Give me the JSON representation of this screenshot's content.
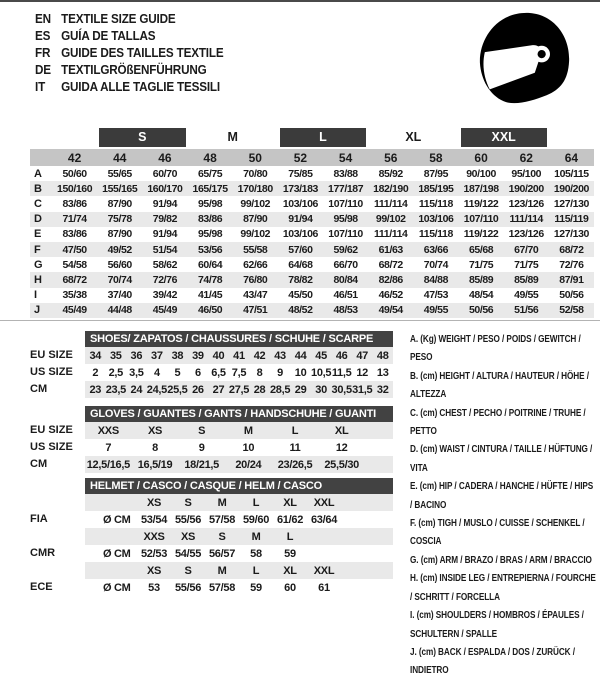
{
  "header": {
    "languages": [
      {
        "code": "EN",
        "text": "TEXTILE SIZE GUIDE"
      },
      {
        "code": "ES",
        "text": "GUÍA DE TALLAS"
      },
      {
        "code": "FR",
        "text": "GUIDE DES TAILLES TEXTILE"
      },
      {
        "code": "DE",
        "text": "TEXTILGRÖßENFÜHRUNG"
      },
      {
        "code": "IT",
        "text": "GUIDA ALLE TAGLIE TESSILI"
      }
    ],
    "helmet_icon": "racing-helmet-icon"
  },
  "colors": {
    "dark_bar": "#3b3b3b",
    "sub_bar": "#424242",
    "numeric_band": "#c5c5c5",
    "row_stripe": "#e9e9e9",
    "top_border": "#4a4a4a"
  },
  "main_table": {
    "size_groups": [
      {
        "label": "",
        "span": 2,
        "dark": false
      },
      {
        "label": "S",
        "span": 2,
        "dark": true
      },
      {
        "label": "M",
        "span": 2,
        "dark": false
      },
      {
        "label": "L",
        "span": 2,
        "dark": true
      },
      {
        "label": "XL",
        "span": 2,
        "dark": false
      },
      {
        "label": "XXL",
        "span": 2,
        "dark": true
      },
      {
        "label": "",
        "span": 1,
        "dark": false
      }
    ],
    "numeric_sizes": [
      "42",
      "44",
      "46",
      "48",
      "50",
      "52",
      "54",
      "56",
      "58",
      "60",
      "62",
      "64"
    ],
    "rows": [
      {
        "label": "A",
        "values": [
          "50/60",
          "55/65",
          "60/70",
          "65/75",
          "70/80",
          "75/85",
          "83/88",
          "85/92",
          "87/95",
          "90/100",
          "95/100",
          "105/115"
        ]
      },
      {
        "label": "B",
        "values": [
          "150/160",
          "155/165",
          "160/170",
          "165/175",
          "170/180",
          "173/183",
          "177/187",
          "182/190",
          "185/195",
          "187/198",
          "190/200",
          "190/200"
        ]
      },
      {
        "label": "C",
        "values": [
          "83/86",
          "87/90",
          "91/94",
          "95/98",
          "99/102",
          "103/106",
          "107/110",
          "111/114",
          "115/118",
          "119/122",
          "123/126",
          "127/130"
        ]
      },
      {
        "label": "D",
        "values": [
          "71/74",
          "75/78",
          "79/82",
          "83/86",
          "87/90",
          "91/94",
          "95/98",
          "99/102",
          "103/106",
          "107/110",
          "111/114",
          "115/119"
        ]
      },
      {
        "label": "E",
        "values": [
          "83/86",
          "87/90",
          "91/94",
          "95/98",
          "99/102",
          "103/106",
          "107/110",
          "111/114",
          "115/118",
          "119/122",
          "123/126",
          "127/130"
        ]
      },
      {
        "label": "F",
        "values": [
          "47/50",
          "49/52",
          "51/54",
          "53/56",
          "55/58",
          "57/60",
          "59/62",
          "61/63",
          "63/66",
          "65/68",
          "67/70",
          "68/72"
        ]
      },
      {
        "label": "G",
        "values": [
          "54/58",
          "56/60",
          "58/62",
          "60/64",
          "62/66",
          "64/68",
          "66/70",
          "68/72",
          "70/74",
          "71/75",
          "71/75",
          "72/76"
        ]
      },
      {
        "label": "H",
        "values": [
          "68/72",
          "70/74",
          "72/76",
          "74/78",
          "76/80",
          "78/82",
          "80/84",
          "82/86",
          "84/88",
          "85/89",
          "85/89",
          "87/91"
        ]
      },
      {
        "label": "I",
        "values": [
          "35/38",
          "37/40",
          "39/42",
          "41/45",
          "43/47",
          "45/50",
          "46/51",
          "46/52",
          "47/53",
          "48/54",
          "49/55",
          "50/56"
        ]
      },
      {
        "label": "J",
        "values": [
          "45/49",
          "44/48",
          "45/49",
          "46/50",
          "47/51",
          "48/52",
          "48/53",
          "49/54",
          "49/55",
          "50/56",
          "51/56",
          "52/58"
        ]
      }
    ]
  },
  "shoes_table": {
    "title": "SHOES/ ZAPATOS / CHAUSSURES / SCHUHE / SCARPE",
    "rows": [
      {
        "label": "EU SIZE",
        "values": [
          "34",
          "35",
          "36",
          "37",
          "38",
          "39",
          "40",
          "41",
          "42",
          "43",
          "44",
          "45",
          "46",
          "47",
          "48"
        ]
      },
      {
        "label": "US SIZE",
        "values": [
          "2",
          "2,5",
          "3,5",
          "4",
          "5",
          "6",
          "6,5",
          "7,5",
          "8",
          "9",
          "10",
          "10,5",
          "11,5",
          "12",
          "13"
        ]
      },
      {
        "label": "CM",
        "values": [
          "23",
          "23,5",
          "24",
          "24,5",
          "25,5",
          "26",
          "27",
          "27,5",
          "28",
          "28,5",
          "29",
          "30",
          "30,5",
          "31,5",
          "32"
        ]
      }
    ]
  },
  "gloves_table": {
    "title": "GLOVES / GUANTES / GANTS / HANDSCHUHE / GUANTI",
    "rows": [
      {
        "label": "EU SIZE",
        "values": [
          "XXS",
          "XS",
          "S",
          "M",
          "L",
          "XL"
        ]
      },
      {
        "label": "US SIZE",
        "values": [
          "7",
          "8",
          "9",
          "10",
          "11",
          "12"
        ]
      },
      {
        "label": "CM",
        "values": [
          "12,5/16,5",
          "16,5/19",
          "18/21,5",
          "20/24",
          "23/26,5",
          "25,5/30"
        ]
      }
    ]
  },
  "helmet_table": {
    "title": "HELMET / CASCO / CASQUE / HELM / CASCO",
    "sections": [
      {
        "label": "FIA",
        "unit": "Ø CM",
        "sizes": [
          "XS",
          "S",
          "M",
          "L",
          "XL",
          "XXL"
        ],
        "values": [
          "53/54",
          "55/56",
          "57/58",
          "59/60",
          "61/62",
          "63/64"
        ]
      },
      {
        "label": "CMR",
        "unit": "Ø CM",
        "sizes": [
          "XXS",
          "XS",
          "S",
          "M",
          "L",
          ""
        ],
        "values": [
          "52/53",
          "54/55",
          "56/57",
          "58",
          "59",
          ""
        ]
      },
      {
        "label": "ECE",
        "unit": "Ø CM",
        "sizes": [
          "XS",
          "S",
          "M",
          "L",
          "XL",
          "XXL"
        ],
        "values": [
          "53",
          "55/56",
          "57/58",
          "59",
          "60",
          "61"
        ]
      }
    ]
  },
  "legend": {
    "items": [
      "A. (Kg) WEIGHT / PESO / POIDS / GEWITCH / PESO",
      "B. (cm) HEIGHT / ALTURA / HAUTEUR / HÖHE / ALTEZZA",
      "C. (cm) CHEST / PECHO / POITRINE / TRUHE / PETTO",
      "D. (cm) WAIST / CINTURA / TAILLE / HÜFTUNG / VITA",
      "E. (cm) HIP / CADERA / HANCHE / HÜFTE / HIPS / BACINO",
      "F. (cm) TIGH / MUSLO / CUISSE / SCHENKEL / COSCIA",
      "G. (cm) ARM / BRAZO / BRAS / ARM / BRACCIO",
      "H. (cm) INSIDE LEG / ENTREPIERNA / FOURCHE / SCHRITT / FORCELLA",
      "I. (cm) SHOULDERS / HOMBROS / ÉPAULES / SCHULTERN / SPALLE",
      "J. (cm) BACK / ESPALDA / DOS / ZURÜCK / INDIETRO"
    ]
  }
}
